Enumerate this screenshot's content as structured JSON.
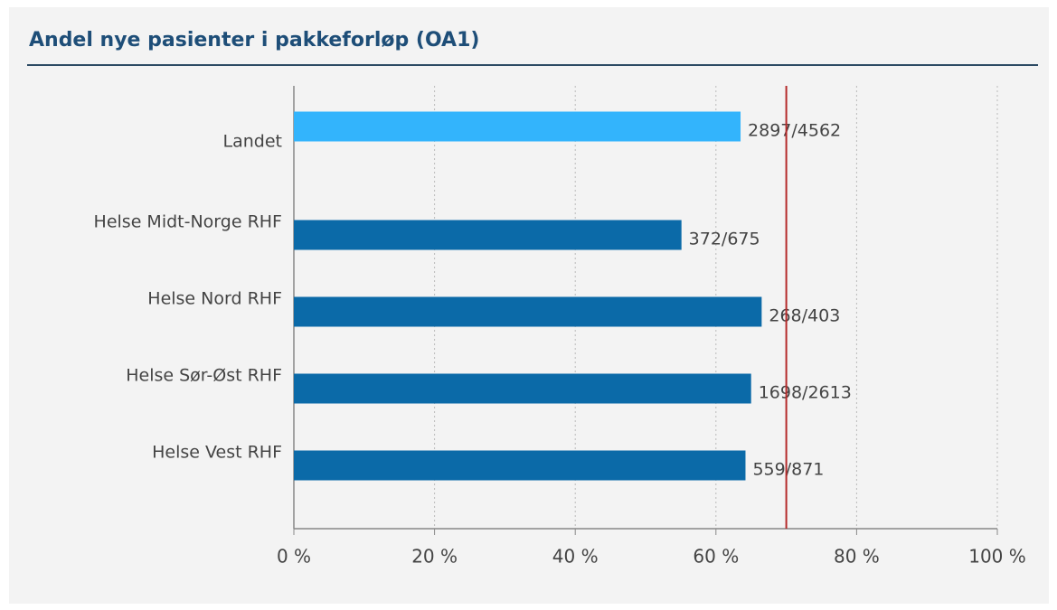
{
  "chart_data": {
    "type": "barh",
    "title": "Andel nye pasienter i pakkeforløp (OA1)",
    "categories": [
      "Landet",
      "Helse Midt-Norge RHF",
      "Helse Nord RHF",
      "Helse Sør-Øst RHF",
      "Helse Vest RHF"
    ],
    "values": [
      63.5,
      55.1,
      66.5,
      65.0,
      64.2
    ],
    "value_labels": [
      "2897/4562",
      "372/675",
      "268/403",
      "1698/2613",
      "559/871"
    ],
    "colors": [
      "#33b4fc",
      "#0b6aa8",
      "#0b6aa8",
      "#0b6aa8",
      "#0b6aa8"
    ],
    "xlim": [
      0,
      100
    ],
    "xticks": [
      {
        "value": 0,
        "label": "0 %"
      },
      {
        "value": 20,
        "label": "20 %"
      },
      {
        "value": 40,
        "label": "40 %"
      },
      {
        "value": 60,
        "label": "60 %"
      },
      {
        "value": 80,
        "label": "80 %"
      },
      {
        "value": 100,
        "label": "100 %"
      }
    ],
    "grid": true,
    "reference_line": {
      "value": 70,
      "color": "#b52a2a"
    }
  }
}
